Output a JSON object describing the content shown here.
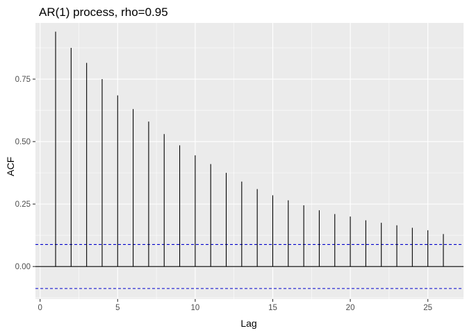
{
  "chart_data": {
    "type": "bar",
    "title": "AR(1) process, rho=0.95",
    "xlabel": "Lag",
    "ylabel": "ACF",
    "x": [
      1,
      2,
      3,
      4,
      5,
      6,
      7,
      8,
      9,
      10,
      11,
      12,
      13,
      14,
      15,
      16,
      17,
      18,
      19,
      20,
      21,
      22,
      23,
      24,
      25,
      26
    ],
    "values": [
      0.94,
      0.875,
      0.815,
      0.75,
      0.685,
      0.63,
      0.58,
      0.53,
      0.485,
      0.445,
      0.41,
      0.375,
      0.34,
      0.31,
      0.285,
      0.265,
      0.245,
      0.225,
      0.21,
      0.2,
      0.185,
      0.175,
      0.165,
      0.155,
      0.145,
      0.13
    ],
    "xlim": [
      -0.3,
      27.3
    ],
    "ylim": [
      -0.13,
      0.975
    ],
    "xticks": [
      0,
      5,
      10,
      15,
      20,
      25
    ],
    "xtick_labels": [
      "0",
      "5",
      "10",
      "15",
      "20",
      "25"
    ],
    "yticks": [
      0,
      0.25,
      0.5,
      0.75
    ],
    "ytick_labels": [
      "0.00",
      "0.25",
      "0.50",
      "0.75"
    ],
    "confidence_bounds": [
      0.088,
      -0.088
    ],
    "zero_line": 0,
    "grid": true,
    "colors": {
      "panel_background": "#ebebeb",
      "grid_major": "#ffffff",
      "bars": "#000000",
      "confidence_line": "#0000cc"
    }
  }
}
